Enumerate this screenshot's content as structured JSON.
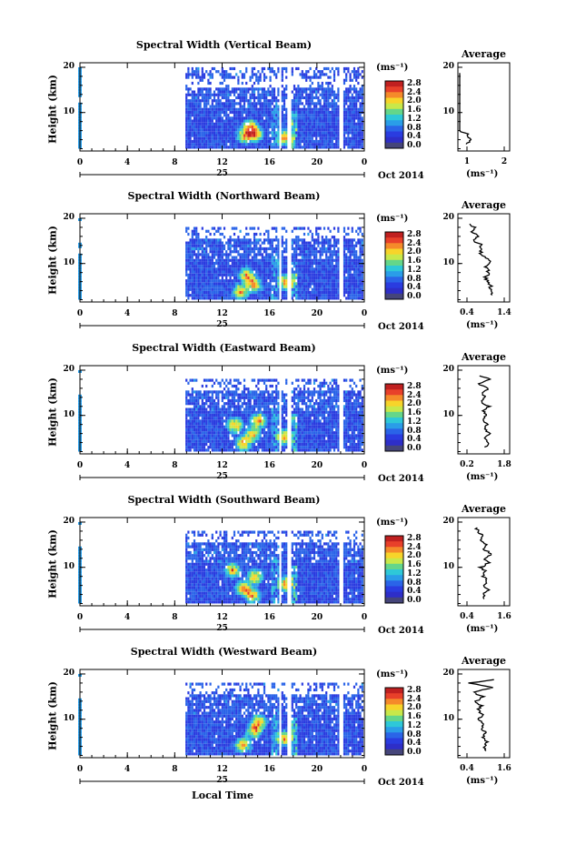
{
  "chart_data": [
    {
      "type": "heatmap",
      "title": "Spectral Width (Vertical Beam)",
      "ylabel": "Height (km)",
      "y_ticks": [
        "20",
        "10"
      ],
      "x_ticks": [
        "0",
        "4",
        "8",
        "12",
        "16",
        "20",
        "0"
      ],
      "day": "25",
      "date": "Oct 2014",
      "colorbar": {
        "unit": "(ms⁻¹)",
        "ticks": [
          "2.8",
          "2.4",
          "2.0",
          "1.6",
          "1.2",
          "0.8",
          "0.4",
          "0.0"
        ],
        "colors": [
          "#c02020",
          "#e8402a",
          "#f58a2a",
          "#f7d42a",
          "#c8e84a",
          "#64d68a",
          "#2ec8d8",
          "#2a9de8",
          "#2a64e8",
          "#2a3ce0",
          "#2e2ec8",
          "#45457a"
        ]
      },
      "avg": {
        "title": "Average",
        "xlabel": "(ms⁻¹)",
        "x_ticks": [
          "1",
          "2"
        ],
        "y_ticks": [
          "20",
          "10"
        ],
        "profile_km": [
          3,
          4,
          5,
          6,
          7,
          8,
          9,
          10,
          11,
          12,
          13,
          14,
          15,
          16,
          17,
          18,
          19
        ],
        "profile_ms": [
          0.95,
          1.1,
          1.05,
          0.8,
          0.75,
          0.8,
          0.7,
          0.7,
          0.72,
          0.6,
          0.68,
          0.62,
          0.6,
          0.65,
          0.55,
          0.58,
          0.6
        ]
      }
    },
    {
      "type": "heatmap",
      "title": "Spectral Width (Northward Beam)",
      "ylabel": "Height (km)",
      "y_ticks": [
        "20",
        "10"
      ],
      "x_ticks": [
        "0",
        "4",
        "8",
        "12",
        "16",
        "20",
        "0"
      ],
      "day": "25",
      "date": "Oct 2014",
      "colorbar": {
        "unit": "(ms⁻¹)",
        "ticks": [
          "2.8",
          "2.4",
          "2.0",
          "1.6",
          "1.2",
          "0.8",
          "0.4",
          "0.0"
        ],
        "colors": [
          "#c02020",
          "#e8402a",
          "#f58a2a",
          "#f7d42a",
          "#c8e84a",
          "#64d68a",
          "#2ec8d8",
          "#2a9de8",
          "#2a64e8",
          "#2a3ce0",
          "#2e2ec8",
          "#45457a"
        ]
      },
      "avg": {
        "title": "Average",
        "xlabel": "(ms⁻¹)",
        "x_ticks": [
          "0.4",
          "1.4"
        ],
        "y_ticks": [
          "20",
          "10"
        ],
        "profile_km": [
          3,
          4,
          5,
          6,
          7,
          8,
          9,
          10,
          11,
          12,
          13,
          14,
          15,
          16,
          17,
          18,
          19
        ],
        "profile_ms": [
          1.1,
          1.0,
          1.05,
          0.95,
          0.9,
          1.0,
          0.9,
          0.95,
          1.0,
          0.8,
          0.75,
          0.8,
          0.6,
          0.7,
          0.55,
          0.6,
          0.5
        ]
      }
    },
    {
      "type": "heatmap",
      "title": "Spectral Width (Eastward Beam)",
      "ylabel": "Height (km)",
      "y_ticks": [
        "20",
        "10"
      ],
      "x_ticks": [
        "0",
        "4",
        "8",
        "12",
        "16",
        "20",
        "0"
      ],
      "day": "25",
      "date": "Oct 2014",
      "colorbar": {
        "unit": "(ms⁻¹)",
        "ticks": [
          "2.8",
          "2.4",
          "2.0",
          "1.6",
          "1.2",
          "0.8",
          "0.4",
          "0.0"
        ],
        "colors": [
          "#c02020",
          "#e8402a",
          "#f58a2a",
          "#f7d42a",
          "#c8e84a",
          "#64d68a",
          "#2ec8d8",
          "#2a9de8",
          "#2a64e8",
          "#2a3ce0",
          "#2e2ec8",
          "#45457a"
        ]
      },
      "avg": {
        "title": "Average",
        "xlabel": "(ms⁻¹)",
        "x_ticks": [
          "0.2",
          "1.8"
        ],
        "y_ticks": [
          "20",
          "10"
        ],
        "profile_km": [
          3,
          4,
          5,
          6,
          7,
          8,
          9,
          10,
          11,
          12,
          13,
          14,
          15,
          16,
          17,
          18,
          19
        ],
        "profile_ms": [
          1.0,
          1.1,
          0.9,
          1.2,
          0.95,
          1.1,
          0.85,
          1.0,
          0.9,
          1.15,
          0.8,
          0.95,
          0.9,
          1.1,
          0.7,
          1.2,
          0.6
        ]
      }
    },
    {
      "type": "heatmap",
      "title": "Spectral Width (Southward Beam)",
      "ylabel": "Height (km)",
      "y_ticks": [
        "20",
        "10"
      ],
      "x_ticks": [
        "0",
        "4",
        "8",
        "12",
        "16",
        "20",
        "0"
      ],
      "day": "25",
      "date": "Oct 2014",
      "colorbar": {
        "unit": "(ms⁻¹)",
        "ticks": [
          "2.8",
          "2.4",
          "2.0",
          "1.6",
          "1.2",
          "0.8",
          "0.4",
          "0.0"
        ],
        "colors": [
          "#c02020",
          "#e8402a",
          "#f58a2a",
          "#f7d42a",
          "#c8e84a",
          "#64d68a",
          "#2ec8d8",
          "#2a9de8",
          "#2a64e8",
          "#2a3ce0",
          "#2e2ec8",
          "#45457a"
        ]
      },
      "avg": {
        "title": "Average",
        "xlabel": "(ms⁻¹)",
        "x_ticks": [
          "0.4",
          "1.6"
        ],
        "y_ticks": [
          "20",
          "10"
        ],
        "profile_km": [
          3,
          4,
          5,
          6,
          7,
          8,
          9,
          10,
          11,
          12,
          13,
          14,
          15,
          16,
          17,
          18,
          19
        ],
        "profile_ms": [
          1.0,
          0.95,
          1.1,
          0.9,
          1.05,
          0.9,
          1.0,
          0.85,
          1.1,
          0.95,
          1.2,
          0.9,
          1.05,
          0.8,
          0.9,
          0.75,
          0.7
        ]
      }
    },
    {
      "type": "heatmap",
      "title": "Spectral Width (Westward Beam)",
      "ylabel": "Height (km)",
      "y_ticks": [
        "20",
        "10"
      ],
      "x_ticks": [
        "0",
        "4",
        "8",
        "12",
        "16",
        "20",
        "0"
      ],
      "day": "25",
      "date": "Oct 2014",
      "colorbar": {
        "unit": "(ms⁻¹)",
        "ticks": [
          "2.8",
          "2.4",
          "2.0",
          "1.6",
          "1.2",
          "0.8",
          "0.4",
          "0.0"
        ],
        "colors": [
          "#c02020",
          "#e8402a",
          "#f58a2a",
          "#f7d42a",
          "#c8e84a",
          "#64d68a",
          "#2ec8d8",
          "#2a9de8",
          "#2a64e8",
          "#2a3ce0",
          "#2e2ec8",
          "#45457a"
        ]
      },
      "avg": {
        "title": "Average",
        "xlabel": "(ms⁻¹)",
        "x_ticks": [
          "0.4",
          "1.6"
        ],
        "y_ticks": [
          "20",
          "10"
        ],
        "profile_km": [
          3,
          4,
          5,
          6,
          7,
          8,
          9,
          10,
          11,
          12,
          13,
          14,
          15,
          16,
          17,
          18,
          19
        ],
        "profile_ms": [
          1.0,
          0.95,
          1.05,
          0.9,
          1.0,
          0.85,
          0.95,
          0.8,
          0.9,
          0.75,
          0.85,
          0.7,
          0.9,
          0.6,
          1.2,
          0.5,
          1.5
        ]
      }
    }
  ],
  "xlabel": "Local Time"
}
